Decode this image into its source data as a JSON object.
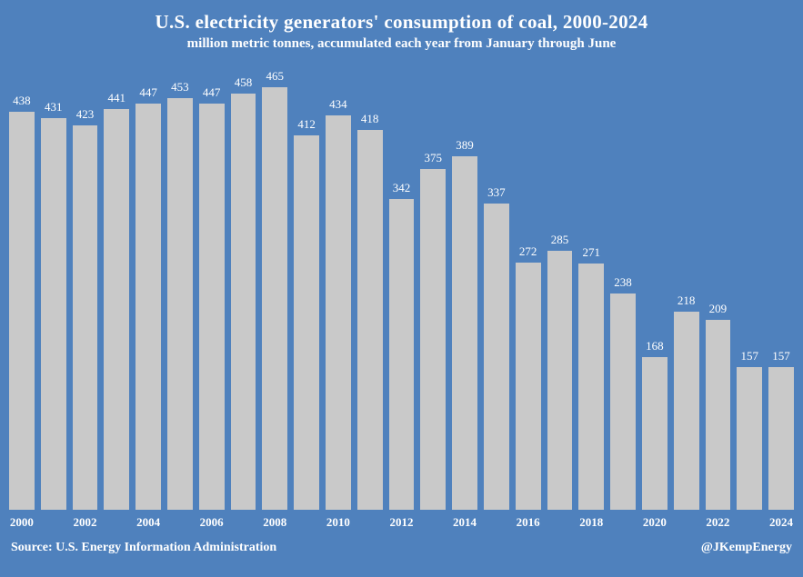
{
  "title": "U.S. electricity generators' consumption of coal, 2000-2024",
  "subtitle": "million metric tonnes, accumulated each year from January through June",
  "footer": {
    "source": "Source: U.S. Energy Information Administration",
    "credit": "@JKempEnergy"
  },
  "colors": {
    "background": "#4f81bd",
    "bar": "#c9c9c9",
    "text": "#ffffff"
  },
  "chart_data": {
    "type": "bar",
    "title": "U.S. electricity generators' consumption of coal, 2000-2024",
    "subtitle": "million metric tonnes, accumulated each year from January through June",
    "categories": [
      2000,
      2001,
      2002,
      2003,
      2004,
      2005,
      2006,
      2007,
      2008,
      2009,
      2010,
      2011,
      2012,
      2013,
      2014,
      2015,
      2016,
      2017,
      2018,
      2019,
      2020,
      2021,
      2022,
      2023,
      2024
    ],
    "values": [
      438,
      431,
      423,
      441,
      447,
      453,
      447,
      458,
      465,
      412,
      434,
      418,
      342,
      375,
      389,
      337,
      272,
      285,
      271,
      238,
      168,
      218,
      209,
      157,
      157
    ],
    "x_tick_labels": [
      "2000",
      "2002",
      "2004",
      "2006",
      "2008",
      "2010",
      "2012",
      "2014",
      "2016",
      "2018",
      "2020",
      "2022",
      "2024"
    ],
    "xlabel": "",
    "ylabel": "million metric tonnes",
    "ylim": [
      0,
      465
    ],
    "grid": false,
    "legend": "none",
    "value_labels": true
  }
}
